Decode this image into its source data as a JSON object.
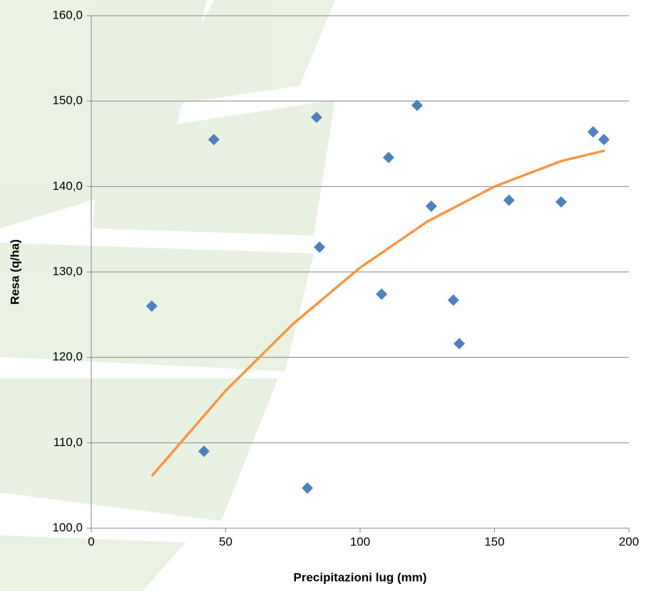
{
  "chart_data": {
    "type": "scatter",
    "x_label": "Precipitazioni lug (mm)",
    "y_label": "Resa (q/ha)",
    "xlim": [
      0,
      200
    ],
    "xticks": [
      0,
      50,
      100,
      150,
      200
    ],
    "ylim": [
      100,
      160
    ],
    "yticks": [
      {
        "value": 100,
        "label": "100,0"
      },
      {
        "value": 110,
        "label": "110,0"
      },
      {
        "value": 120,
        "label": "120,0"
      },
      {
        "value": 130,
        "label": "130,0"
      },
      {
        "value": 140,
        "label": "140,0"
      },
      {
        "value": 150,
        "label": "150,0"
      },
      {
        "value": 160,
        "label": "160,0"
      }
    ],
    "grid": true,
    "series": [
      {
        "color": "#4f81bd",
        "x": [
          22.5,
          41.9,
          45.6,
          80.4,
          83.8,
          84.9,
          108.0,
          110.6,
          121.2,
          126.5,
          134.7,
          136.9,
          155.4,
          174.8,
          186.7,
          190.7
        ],
        "values": [
          126.0,
          109.0,
          145.5,
          104.7,
          148.1,
          132.9,
          127.4,
          143.4,
          149.5,
          137.7,
          126.7,
          121.6,
          138.4,
          138.2,
          146.4,
          145.5
        ]
      }
    ],
    "trendline": {
      "color": "#f79646",
      "x": [
        22.5,
        50,
        75,
        100,
        125,
        150,
        175,
        191
      ],
      "values": [
        106.1,
        116.1,
        123.9,
        130.5,
        135.9,
        140.0,
        143.0,
        144.2
      ]
    }
  }
}
